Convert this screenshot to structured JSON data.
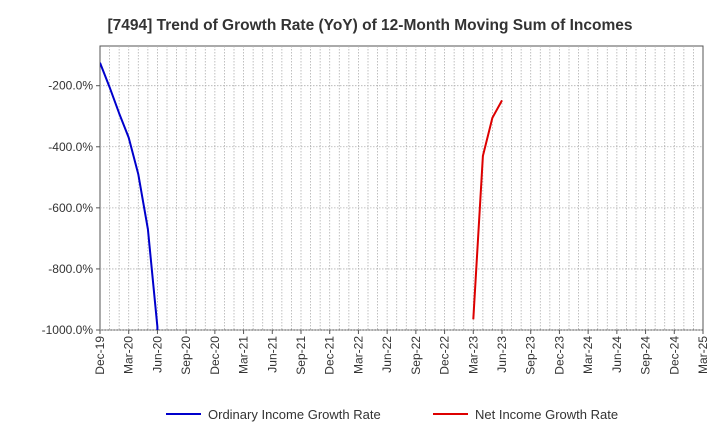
{
  "chart_data": {
    "type": "line",
    "title": "[7494]  Trend of Growth Rate (YoY) of 12-Month Moving Sum of Incomes",
    "xlabel": "",
    "ylabel": "",
    "ylim": [
      -1000,
      -70
    ],
    "yticks": [
      -1000,
      -800,
      -600,
      -400,
      -200
    ],
    "ytick_labels": [
      "-1000.0%",
      "-800.0%",
      "-600.0%",
      "-400.0%",
      "-200.0%"
    ],
    "x_start": "Dec-19",
    "x_end": "Mar-25",
    "xtick_labels": [
      "Dec-19",
      "Mar-20",
      "Jun-20",
      "Sep-20",
      "Dec-20",
      "Mar-21",
      "Jun-21",
      "Sep-21",
      "Dec-21",
      "Mar-22",
      "Jun-22",
      "Sep-22",
      "Dec-22",
      "Mar-23",
      "Jun-23",
      "Sep-23",
      "Dec-23",
      "Mar-24",
      "Jun-24",
      "Sep-24",
      "Dec-24",
      "Mar-25"
    ],
    "grid": true,
    "legend_position": "bottom",
    "series": [
      {
        "name": "Ordinary Income Growth Rate",
        "color": "#0000cc",
        "points": [
          {
            "x": "Dec-19",
            "y": -125
          },
          {
            "x": "Jan-20",
            "y": -205
          },
          {
            "x": "Feb-20",
            "y": -290
          },
          {
            "x": "Mar-20",
            "y": -370
          },
          {
            "x": "Apr-20",
            "y": -490
          },
          {
            "x": "May-20",
            "y": -670
          },
          {
            "x": "Jun-20",
            "y": -990
          },
          {
            "x": "Jun-20",
            "y": -1000
          }
        ]
      },
      {
        "name": "Net Income Growth Rate",
        "color": "#dd0000",
        "points": [
          {
            "x": "Mar-23",
            "y": -965
          },
          {
            "x": "Apr-23",
            "y": -430
          },
          {
            "x": "May-23",
            "y": -305
          },
          {
            "x": "Jun-23",
            "y": -248
          }
        ]
      }
    ]
  }
}
